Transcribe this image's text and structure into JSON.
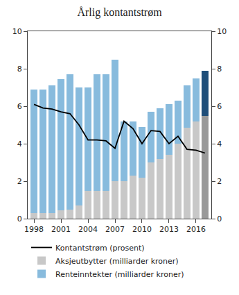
{
  "chart_data": {
    "type": "bar",
    "title": "Årlig kontantstrøm",
    "stacked": true,
    "grid": false,
    "legend": "bottom",
    "x": [
      1998,
      1999,
      2000,
      2001,
      2002,
      2003,
      2004,
      2005,
      2006,
      2007,
      2008,
      2009,
      2010,
      2011,
      2012,
      2013,
      2014,
      2015,
      2016,
      2017
    ],
    "xlim": [
      1997.3,
      2017.7
    ],
    "xticks": [
      1998,
      2001,
      2004,
      2007,
      2010,
      2013,
      2016
    ],
    "ylim": [
      0,
      10
    ],
    "yticks": [
      0,
      2,
      4,
      6,
      8,
      10
    ],
    "y2lim": [
      0,
      10
    ],
    "y2ticks": [
      0,
      2,
      4,
      6,
      8,
      10
    ],
    "series": [
      {
        "name": "Renteinntekter (milliarder kroner)",
        "type": "bar",
        "colors": [
          "#88BBDD",
          "#88BBDD",
          "#88BBDD",
          "#88BBDD",
          "#88BBDD",
          "#88BBDD",
          "#88BBDD",
          "#88BBDD",
          "#88BBDD",
          "#88BBDD",
          "#88BBDD",
          "#88BBDD",
          "#88BBDD",
          "#88BBDD",
          "#88BBDD",
          "#88BBDD",
          "#88BBDD",
          "#88BBDD",
          "#88BBDD",
          "#1F4E79"
        ],
        "values": [
          6.6,
          6.6,
          6.8,
          7.0,
          7.2,
          6.3,
          5.5,
          6.2,
          6.2,
          6.5,
          3.2,
          2.9,
          2.7,
          2.7,
          2.7,
          2.7,
          2.3,
          2.25,
          2.3,
          2.4
        ]
      },
      {
        "name": "Aksjeutbytter (milliarder kroner)",
        "type": "bar",
        "colors": [
          "#C8C8C8",
          "#C8C8C8",
          "#C8C8C8",
          "#C8C8C8",
          "#C8C8C8",
          "#C8C8C8",
          "#C8C8C8",
          "#C8C8C8",
          "#C8C8C8",
          "#C8C8C8",
          "#C8C8C8",
          "#C8C8C8",
          "#C8C8C8",
          "#C8C8C8",
          "#C8C8C8",
          "#C8C8C8",
          "#C8C8C8",
          "#C8C8C8",
          "#C8C8C8",
          "#999999"
        ],
        "values": [
          0.3,
          0.3,
          0.3,
          0.45,
          0.5,
          0.7,
          1.5,
          1.5,
          1.5,
          2.0,
          2.0,
          2.3,
          2.2,
          3.0,
          3.2,
          3.4,
          4.0,
          4.85,
          5.2,
          5.5
        ]
      },
      {
        "name": "Kontantstrøm (prosent)",
        "type": "line",
        "axis": "y2",
        "color": "#000000",
        "values": [
          6.1,
          5.9,
          5.85,
          5.7,
          5.6,
          5.0,
          4.2,
          4.2,
          4.15,
          3.75,
          5.2,
          4.8,
          4.0,
          4.7,
          4.65,
          4.0,
          4.4,
          3.7,
          3.65,
          3.5
        ]
      }
    ]
  }
}
